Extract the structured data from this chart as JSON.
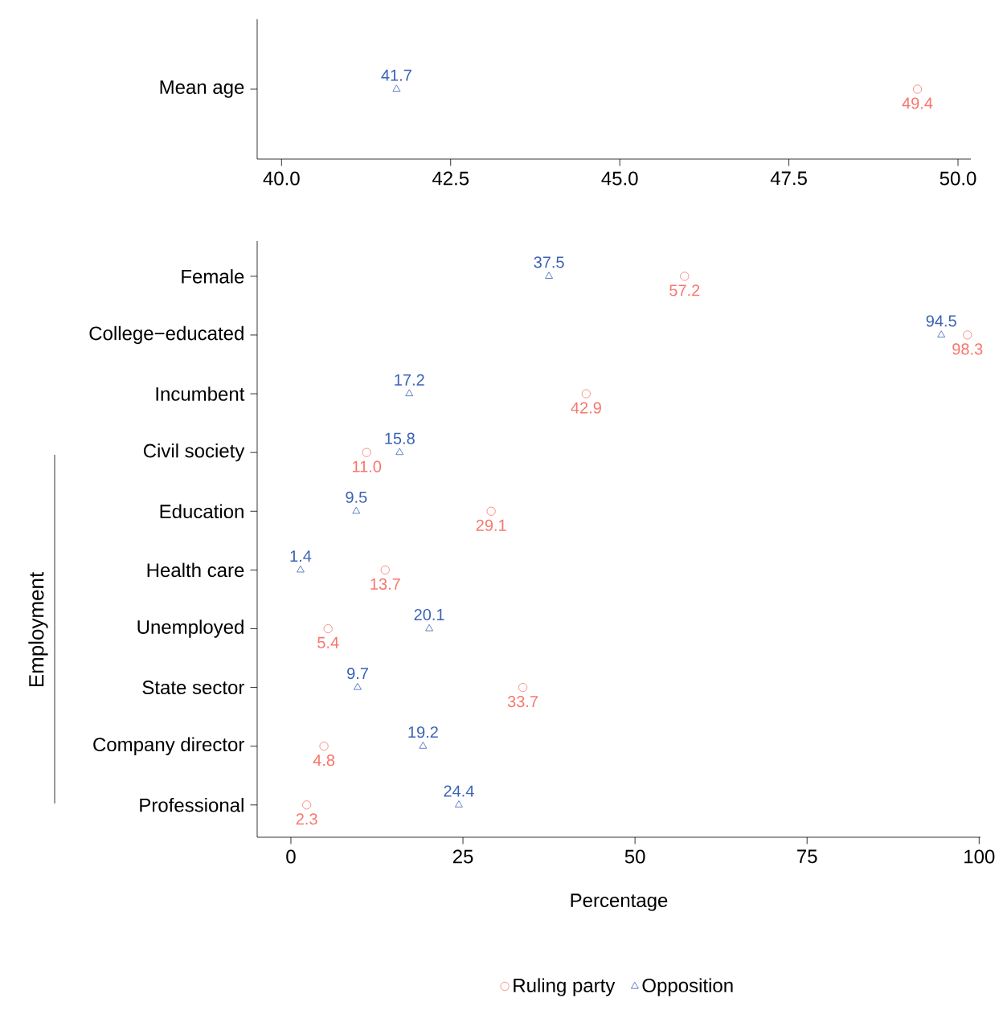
{
  "chart_data": [
    {
      "type": "scatter",
      "orientation": "horizontal",
      "categories": [
        "Mean age"
      ],
      "xlim": [
        39.64,
        50.19
      ],
      "xticks": [
        {
          "value": 40,
          "label": "40.0"
        },
        {
          "value": 42.5,
          "label": "42.5"
        },
        {
          "value": 45,
          "label": "45.0"
        },
        {
          "value": 47.5,
          "label": "47.5"
        },
        {
          "value": 50,
          "label": "50.0"
        }
      ],
      "series": [
        {
          "color": "#f8766d",
          "marker": "circle",
          "values": [
            49.4
          ],
          "value_labels": [
            "49.4"
          ]
        },
        {
          "color": "#3b62b5",
          "marker": "triangle",
          "values": [
            41.7
          ],
          "value_labels": [
            "41.7"
          ]
        }
      ]
    },
    {
      "type": "scatter",
      "orientation": "horizontal",
      "categories": [
        "Female",
        "College−educated",
        "Incumbent",
        "Civil society",
        "Education",
        "Health care",
        "Unemployed",
        "State sector",
        "Company director",
        "Professional"
      ],
      "xlabel": "Percentage",
      "xlim": [
        -4.9,
        100.2
      ],
      "xticks": [
        0,
        25,
        50,
        75,
        100
      ],
      "legend": "bottom",
      "annotations": [
        "Employment"
      ],
      "series": [
        {
          "name": "Ruling party",
          "color": "#f8766d",
          "marker": "circle",
          "values": [
            57.2,
            98.3,
            42.9,
            11.0,
            29.1,
            13.7,
            5.4,
            33.7,
            4.8,
            2.3
          ],
          "value_labels": [
            "57.2",
            "98.3",
            "42.9",
            "11.0",
            "29.1",
            "13.7",
            "5.4",
            "33.7",
            "4.8",
            "2.3"
          ]
        },
        {
          "name": "Opposition",
          "color": "#3b62b5",
          "marker": "triangle",
          "values": [
            37.5,
            94.5,
            17.2,
            15.8,
            9.5,
            1.4,
            20.1,
            9.7,
            19.2,
            24.4
          ],
          "value_labels": [
            "37.5",
            "94.5",
            "17.2",
            "15.8",
            "9.5",
            "1.4",
            "20.1",
            "9.7",
            "19.2",
            "24.4"
          ]
        }
      ]
    }
  ]
}
